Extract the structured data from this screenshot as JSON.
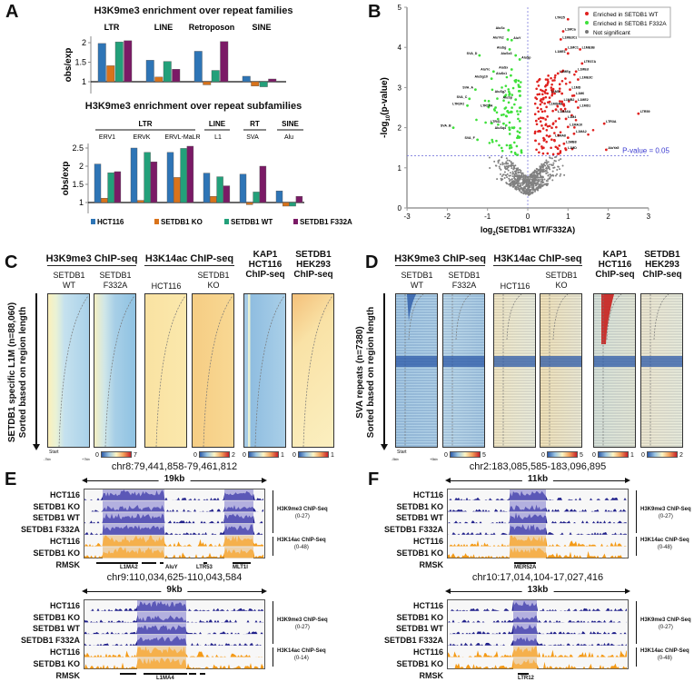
{
  "panel_labels": {
    "a": "A",
    "b": "B",
    "c": "C",
    "d": "D",
    "e": "E",
    "f": "F"
  },
  "chart_data": [
    {
      "type": "bar",
      "title": "H3K9me3 enrichment over repeat families",
      "ylabel": "obs/exp",
      "baseline": 1,
      "ylim": [
        0.8,
        2.2
      ],
      "yticks": [
        "1",
        "1.5",
        "2"
      ],
      "categories": [
        "LTR",
        "LINE",
        "Retroposon",
        "SINE"
      ],
      "series": [
        {
          "name": "HCT116",
          "color": "#2e75b6",
          "values": [
            1.98,
            1.55,
            1.78,
            1.14
          ]
        },
        {
          "name": "SETDB1 KO",
          "color": "#d9731b",
          "values": [
            1.41,
            1.12,
            0.92,
            0.89
          ]
        },
        {
          "name": "SETDB1 WT",
          "color": "#23a07a",
          "values": [
            2.02,
            1.52,
            1.29,
            0.87
          ]
        },
        {
          "name": "SETDB1 F332A",
          "color": "#7b1a66",
          "values": [
            2.05,
            1.32,
            2.03,
            1.07
          ]
        }
      ]
    },
    {
      "type": "bar",
      "title": "H3K9me3 enrichment over repeat subfamilies",
      "ylabel": "obs/exp",
      "baseline": 1,
      "ylim": [
        0.8,
        2.6
      ],
      "yticks": [
        "1",
        "1.5",
        "2",
        "2.5"
      ],
      "groups": [
        "LTR",
        "LINE",
        "RT",
        "SINE"
      ],
      "categories": [
        "ERV1",
        "ERVK",
        "ERVL-MaLR",
        "L1",
        "SVA",
        "Alu"
      ],
      "series": [
        {
          "name": "HCT116",
          "color": "#2e75b6",
          "values": [
            2.06,
            2.5,
            2.38,
            1.81,
            1.78,
            1.32
          ]
        },
        {
          "name": "SETDB1 KO",
          "color": "#d9731b",
          "values": [
            1.12,
            1.06,
            1.69,
            1.17,
            0.94,
            0.9
          ]
        },
        {
          "name": "SETDB1 WT",
          "color": "#23a07a",
          "values": [
            1.82,
            2.38,
            2.49,
            1.71,
            1.29,
            0.9
          ]
        },
        {
          "name": "SETDB1 F332A",
          "color": "#7b1a66",
          "values": [
            1.85,
            2.12,
            2.55,
            1.46,
            2.0,
            1.17
          ]
        }
      ],
      "legend": [
        "HCT116",
        "SETDB1 KO",
        "SETDB1 WT",
        "SETDB1 F332A"
      ]
    },
    {
      "type": "scatter",
      "xlabel_main": "log",
      "xlabel_sub": "2",
      "xlabel_rest": "(SETDB1 WT/F332A)",
      "ylabel_pre": "-log",
      "ylabel_sub": "10",
      "ylabel_rest": "(p-value)",
      "xlim": [
        -3,
        3
      ],
      "ylim": [
        0,
        5
      ],
      "xticks": [
        "-3",
        "-2",
        "-1",
        "0",
        "1",
        "2",
        "3"
      ],
      "yticks": [
        "0",
        "1",
        "2",
        "3",
        "4",
        "5"
      ],
      "threshold": 1.3,
      "threshold_label": "P-value = 0.05",
      "legend": [
        {
          "label": "Enriched in SETDB1 WT",
          "color": "#e0201e"
        },
        {
          "label": "Enriched in SETDB1 F332A",
          "color": "#3ee03a"
        },
        {
          "label": "Not significant",
          "color": "#777777"
        }
      ],
      "labeled_points": [
        {
          "name": "AluSc",
          "x": -0.48,
          "y": 4.43,
          "group": "F332A"
        },
        {
          "name": "AluYk2",
          "x": -0.5,
          "y": 4.2,
          "group": "F332A"
        },
        {
          "name": "AluY",
          "x": -0.4,
          "y": 4.18,
          "group": "F332A"
        },
        {
          "name": "AluSg",
          "x": -0.45,
          "y": 3.95,
          "group": "F332A"
        },
        {
          "name": "SVA_D",
          "x": -1.2,
          "y": 3.8,
          "group": "F332A"
        },
        {
          "name": "AluSx3",
          "x": -0.3,
          "y": 3.8,
          "group": "F332A"
        },
        {
          "name": "AluSp",
          "x": -0.2,
          "y": 3.7,
          "group": "F332A"
        },
        {
          "name": "AluSx",
          "x": -0.4,
          "y": 3.45,
          "group": "F332A"
        },
        {
          "name": "AluYc",
          "x": -0.85,
          "y": 3.4,
          "group": "F332A"
        },
        {
          "name": "AluSx1",
          "x": -0.42,
          "y": 3.3,
          "group": "F332A"
        },
        {
          "name": "AluSg10",
          "x": -0.9,
          "y": 3.22,
          "group": "F332A"
        },
        {
          "name": "SVA_A",
          "x": -1.3,
          "y": 2.95,
          "group": "F332A"
        },
        {
          "name": "AluSg7",
          "x": -0.45,
          "y": 2.85,
          "group": "F332A"
        },
        {
          "name": "AluSp",
          "x": -0.3,
          "y": 2.7,
          "group": "F332A"
        },
        {
          "name": "SVA_C",
          "x": -1.45,
          "y": 2.72,
          "group": "F332A"
        },
        {
          "name": "LTR2F2",
          "x": -1.5,
          "y": 2.55,
          "group": "F332A"
        },
        {
          "name": "LTR16A",
          "x": -0.8,
          "y": 2.5,
          "group": "F332A"
        },
        {
          "name": "LTR41",
          "x": -0.6,
          "y": 2.1,
          "group": "F332A"
        },
        {
          "name": "SVA_B",
          "x": -1.85,
          "y": 2.0,
          "group": "F332A"
        },
        {
          "name": "AluSq4",
          "x": -0.45,
          "y": 1.95,
          "group": "F332A"
        },
        {
          "name": "SVA_F",
          "x": -1.25,
          "y": 1.7,
          "group": "F332A"
        },
        {
          "name": "LTR25",
          "x": 1.0,
          "y": 4.7,
          "group": "WT"
        },
        {
          "name": "L1MCa",
          "x": 0.88,
          "y": 4.4,
          "group": "WT"
        },
        {
          "name": "L1ME3Cz",
          "x": 0.82,
          "y": 4.2,
          "group": "WT"
        },
        {
          "name": "L1MC1",
          "x": 0.95,
          "y": 3.95,
          "group": "WT"
        },
        {
          "name": "L1ME3B",
          "x": 1.3,
          "y": 3.95,
          "group": "WT"
        },
        {
          "name": "L1ME1",
          "x": 1.0,
          "y": 3.85,
          "group": "WT"
        },
        {
          "name": "LTR37A",
          "x": 1.35,
          "y": 3.6,
          "group": "WT"
        },
        {
          "name": "L1MEg",
          "x": 0.75,
          "y": 3.35,
          "group": "WT"
        },
        {
          "name": "L1MEd",
          "x": 1.2,
          "y": 3.4,
          "group": "WT"
        },
        {
          "name": "L1ME3C",
          "x": 1.25,
          "y": 3.2,
          "group": "WT"
        },
        {
          "name": "L1MD",
          "x": 1.05,
          "y": 2.95,
          "group": "WT"
        },
        {
          "name": "L1M5",
          "x": 0.85,
          "y": 2.85,
          "group": "WT"
        },
        {
          "name": "L1M6",
          "x": 1.15,
          "y": 2.8,
          "group": "WT"
        },
        {
          "name": "L1ME2",
          "x": 1.2,
          "y": 2.65,
          "group": "WT"
        },
        {
          "name": "L1MB2",
          "x": 0.85,
          "y": 2.65,
          "group": "WT"
        },
        {
          "name": "L1MD4B",
          "x": 0.9,
          "y": 2.55,
          "group": "WT"
        },
        {
          "name": "L1MD1",
          "x": 1.25,
          "y": 2.5,
          "group": "WT"
        },
        {
          "name": "L1MA6A",
          "x": 0.7,
          "y": 2.45,
          "group": "WT"
        },
        {
          "name": "L1M4",
          "x": 0.95,
          "y": 2.22,
          "group": "WT"
        },
        {
          "name": "LTR59",
          "x": 2.75,
          "y": 2.35,
          "group": "WT"
        },
        {
          "name": "LTR3A",
          "x": 1.9,
          "y": 2.1,
          "group": "WT"
        },
        {
          "name": "L1MA10",
          "x": 1.0,
          "y": 2.02,
          "group": "WT"
        },
        {
          "name": "L1MA2",
          "x": 1.15,
          "y": 1.85,
          "group": "WT"
        },
        {
          "name": "L1MA8",
          "x": 1.0,
          "y": 1.75,
          "group": "WT"
        },
        {
          "name": "L1MB8",
          "x": 0.9,
          "y": 1.6,
          "group": "WT"
        },
        {
          "name": "L1MD",
          "x": 0.95,
          "y": 1.45,
          "group": "WT"
        },
        {
          "name": "AluYa5",
          "x": 1.95,
          "y": 1.45,
          "group": "WT"
        }
      ]
    }
  ],
  "heatmaps": {
    "assay1": "H3K9me3 ChIP-seq",
    "assay2": "H3K14ac ChIP-seq",
    "kap1": [
      "KAP1",
      "HCT116",
      "ChIP-seq"
    ],
    "setdb1": [
      "SETDB1",
      "HEK293",
      "ChIP-seq"
    ],
    "cols": [
      [
        "SETDB1",
        "WT"
      ],
      [
        "SETDB1",
        "F332A"
      ],
      [
        "HCT116"
      ],
      [
        "SETDB1",
        "KO"
      ]
    ],
    "start": "Start",
    "C": {
      "ylabel1": "SETDB1 specific L1M (n=88,060)",
      "ylabel2": "Sorted based on region length",
      "left": "-7kb",
      "right": "+7kb",
      "scales": [
        [
          "0",
          "7"
        ],
        [
          "0",
          "2"
        ],
        [
          "0",
          "1"
        ],
        [
          "0",
          "1"
        ]
      ]
    },
    "D": {
      "ylabel1": "SVA repeats (n=7380)",
      "ylabel2": "Sorted based on region length",
      "left": "-5kb",
      "right": "+5kb",
      "scales": [
        [
          "0",
          "5"
        ],
        [
          "0",
          "5"
        ],
        [
          "0",
          "1"
        ],
        [
          "0",
          "2"
        ]
      ]
    }
  },
  "tracks": {
    "labels": [
      "HCT116",
      "SETDB1 KO",
      "SETDB1 WT",
      "SETDB1 F332A",
      "HCT116",
      "SETDB1 KO"
    ],
    "rmsk": "RMSK",
    "k9": "H3K9me3 ChIP-Seq",
    "k14": "H3K14ac ChIP-Seq",
    "E1": {
      "locus": "chr8:79,441,858-79,461,812",
      "size": "19kb",
      "k9range": "(0-27)",
      "k14range": "(0-48)",
      "rmsk_labels": [
        "L1MA2",
        "AluY",
        "LTR53",
        "MLT1I"
      ]
    },
    "E2": {
      "locus": "chr9:110,034,625-110,043,584",
      "size": "9kb",
      "k9range": "(0-27)",
      "k14range": "(0-14)",
      "rmsk_labels": [
        "L1MA4"
      ]
    },
    "F1": {
      "locus": "chr2:183,085,585-183,096,895",
      "size": "11kb",
      "k9range": "(0-27)",
      "k14range": "(0-48)",
      "rmsk_labels": [
        "MER52A"
      ]
    },
    "F2": {
      "locus": "chr10:17,014,104-17,027,416",
      "size": "13kb",
      "k9range": "(0-27)",
      "k14range": "(0-48)",
      "rmsk_labels": [
        "LTR12"
      ]
    }
  }
}
